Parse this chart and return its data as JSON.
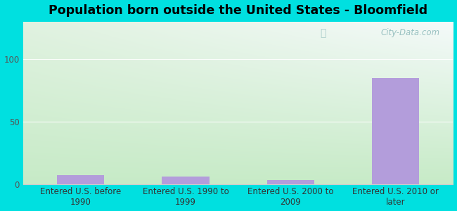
{
  "title": "Population born outside the United States - Bloomfield",
  "categories": [
    "Entered U.S. before\n1990",
    "Entered U.S. 1990 to\n1999",
    "Entered U.S. 2000 to\n2009",
    "Entered U.S. 2010 or\nlater"
  ],
  "values": [
    7,
    6,
    3,
    85
  ],
  "bar_color": "#b39ddb",
  "background_outer": "#00e0e0",
  "ylim": [
    0,
    130
  ],
  "yticks": [
    0,
    50,
    100
  ],
  "title_fontsize": 12.5,
  "tick_fontsize": 8.5,
  "watermark": "City-Data.com",
  "grad_top_left": "#d6f0d6",
  "grad_top_right": "#e8f5f5",
  "grad_bottom": "#c8ebc8"
}
